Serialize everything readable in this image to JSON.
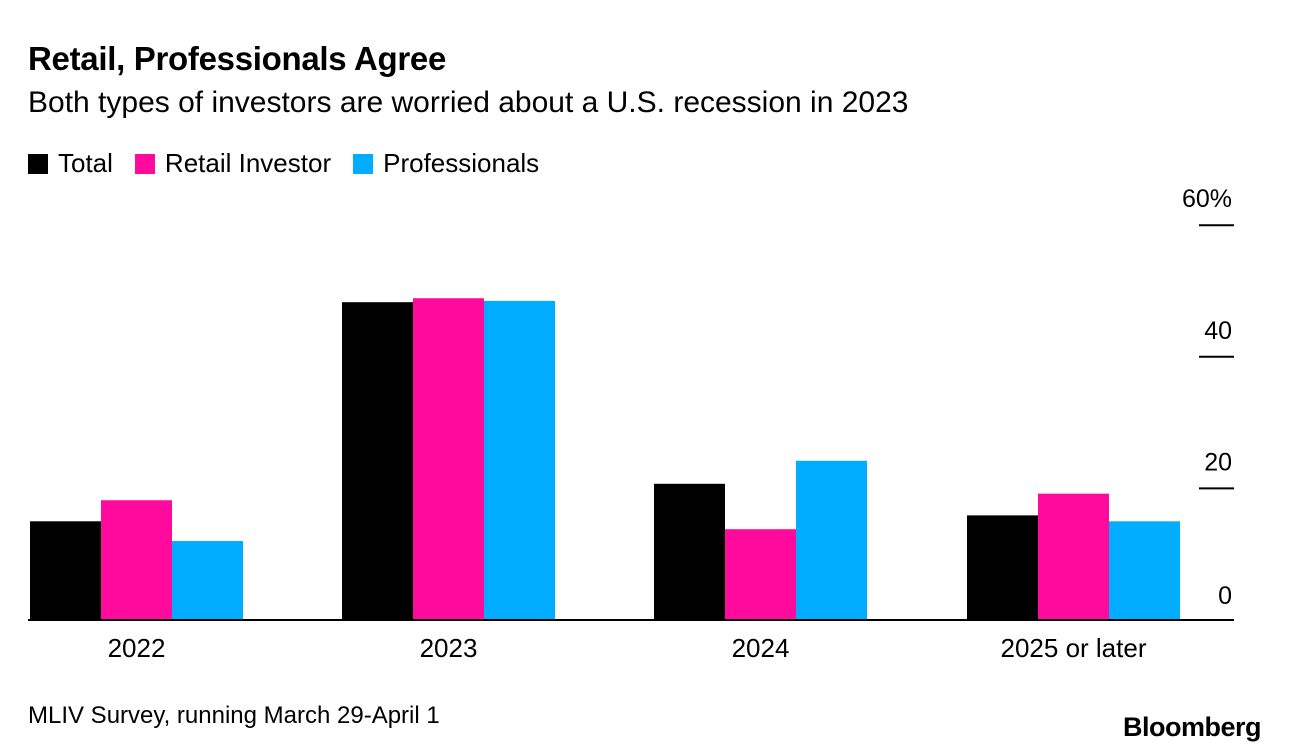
{
  "header": {
    "title": "Retail, Professionals Agree",
    "subtitle": "Both types of investors are worried about a U.S. recession in 2023"
  },
  "legend": [
    {
      "label": "Total",
      "color": "#000000"
    },
    {
      "label": "Retail Investor",
      "color": "#ff0a9c"
    },
    {
      "label": "Professionals",
      "color": "#00adff"
    }
  ],
  "footer": {
    "note": "MLIV Survey, running March 29-April 1",
    "brand": "Bloomberg"
  },
  "chart_data": {
    "type": "bar",
    "title": "Retail, Professionals Agree",
    "subtitle": "Both types of investors are worried about a U.S. recession in 2023",
    "categories": [
      "2022",
      "2023",
      "2024",
      "2025 or later"
    ],
    "series": [
      {
        "name": "Total",
        "color": "#000000",
        "values": [
          15,
          48.3,
          20.7,
          15.9
        ]
      },
      {
        "name": "Retail Investor",
        "color": "#ff0a9c",
        "values": [
          18.2,
          48.9,
          13.8,
          19.2
        ]
      },
      {
        "name": "Professionals",
        "color": "#00adff",
        "values": [
          12.0,
          48.5,
          24.2,
          15.0
        ]
      }
    ],
    "ylim": [
      0,
      60
    ],
    "yticks": [
      0,
      20,
      40,
      60
    ],
    "ytick_labels": [
      "0",
      "20",
      "40",
      "60%"
    ],
    "yaxis_position": "right",
    "xlabel": "",
    "ylabel": ""
  }
}
